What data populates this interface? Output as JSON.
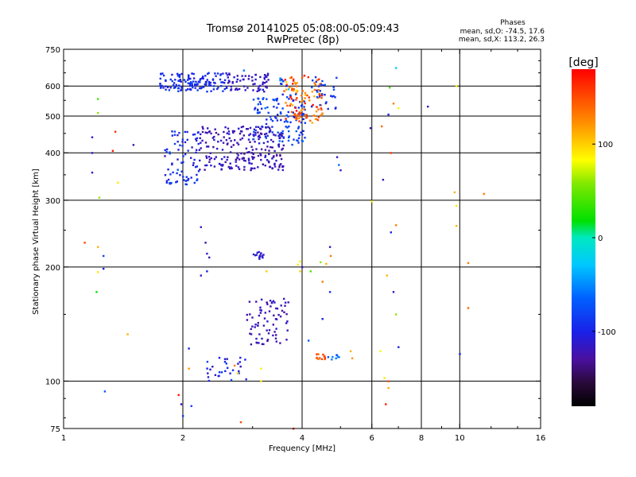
{
  "chart_data": {
    "type": "scatter",
    "title": "Tromsø 20141025 05:08:00-05:09:43",
    "subtitle": "RwPretec (8p)",
    "xlabel": "Frequency [MHz]",
    "ylabel": "Stationary phase Virtual Height [km]",
    "x_scale": "log",
    "y_scale": "log",
    "xlim": [
      1,
      16
    ],
    "ylim": [
      75,
      750
    ],
    "x_ticks": [
      1,
      2,
      4,
      6,
      8,
      10,
      16
    ],
    "y_ticks": [
      75,
      100,
      200,
      300,
      400,
      500,
      600,
      750
    ],
    "grid": true,
    "phase_stats": {
      "title": "Phases",
      "line_o": "mean, sd,O: -74.5, 17.6",
      "line_x": "mean, sd,X: 113.2, 26.3"
    },
    "colorbar": {
      "label": "[deg]",
      "range": [
        -180,
        180
      ],
      "ticks": [
        100,
        0,
        -100
      ]
    },
    "clusters": [
      {
        "f": [
          1.75,
          2.6
        ],
        "h": [
          580,
          650
        ],
        "n": 140,
        "phase": -95,
        "spread": 12
      },
      {
        "f": [
          2.6,
          3.3
        ],
        "h": [
          580,
          650
        ],
        "n": 60,
        "phase": -115,
        "spread": 10
      },
      {
        "f": [
          1.8,
          2.2
        ],
        "h": [
          330,
          460
        ],
        "n": 80,
        "phase": -95,
        "spread": 15
      },
      {
        "f": [
          2.2,
          3.6
        ],
        "h": [
          360,
          470
        ],
        "n": 230,
        "phase": -120,
        "spread": 12
      },
      {
        "f": [
          3.0,
          4.1
        ],
        "h": [
          420,
          560
        ],
        "n": 120,
        "phase": -85,
        "spread": 15
      },
      {
        "f": [
          3.6,
          4.5
        ],
        "h": [
          480,
          640
        ],
        "n": 110,
        "phase": 140,
        "spread": 25
      },
      {
        "f": [
          4.2,
          4.9
        ],
        "h": [
          520,
          640
        ],
        "n": 30,
        "phase": -90,
        "spread": 18
      },
      {
        "f": [
          3.5,
          3.9
        ],
        "h": [
          560,
          640
        ],
        "n": 14,
        "phase": -70,
        "spread": 40
      },
      {
        "f": [
          2.9,
          3.7
        ],
        "h": [
          125,
          165
        ],
        "n": 75,
        "phase": -120,
        "spread": 10
      },
      {
        "f": [
          2.3,
          3.0
        ],
        "h": [
          100,
          118
        ],
        "n": 30,
        "phase": -100,
        "spread": 15
      },
      {
        "f": [
          3.0,
          3.2
        ],
        "h": [
          210,
          220
        ],
        "n": 14,
        "phase": -110,
        "spread": 5
      },
      {
        "f": [
          4.3,
          4.6
        ],
        "h": [
          114,
          118
        ],
        "n": 12,
        "phase": 150,
        "spread": 20
      },
      {
        "f": [
          4.6,
          5.0
        ],
        "h": [
          112,
          118
        ],
        "n": 8,
        "phase": -60,
        "spread": 15
      }
    ],
    "scatter_points": [
      [
        1.18,
        440,
        -110
      ],
      [
        1.18,
        400,
        -110
      ],
      [
        1.18,
        355,
        -115
      ],
      [
        1.22,
        555,
        40
      ],
      [
        1.22,
        510,
        60
      ],
      [
        1.23,
        305,
        60
      ],
      [
        1.13,
        232,
        150
      ],
      [
        1.22,
        226,
        110
      ],
      [
        1.26,
        214,
        -80
      ],
      [
        1.26,
        198,
        -110
      ],
      [
        1.22,
        194,
        90
      ],
      [
        1.21,
        172,
        20
      ],
      [
        1.37,
        334,
        90
      ],
      [
        1.5,
        420,
        -120
      ],
      [
        1.45,
        133,
        110
      ],
      [
        1.27,
        94,
        -70
      ],
      [
        1.33,
        405,
        170
      ],
      [
        1.35,
        455,
        160
      ],
      [
        1.95,
        92,
        170
      ],
      [
        1.98,
        87,
        -120
      ],
      [
        2.0,
        81,
        -90
      ],
      [
        2.1,
        86,
        -80
      ],
      [
        2.07,
        122,
        -100
      ],
      [
        2.07,
        108,
        120
      ],
      [
        2.22,
        255,
        -110
      ],
      [
        2.28,
        232,
        -120
      ],
      [
        2.3,
        217,
        -110
      ],
      [
        2.33,
        212,
        -120
      ],
      [
        2.22,
        190,
        -110
      ],
      [
        2.3,
        195,
        -100
      ],
      [
        2.7,
        110,
        130
      ],
      [
        2.75,
        105,
        100
      ],
      [
        2.8,
        78,
        150
      ],
      [
        3.25,
        195,
        100
      ],
      [
        3.15,
        100,
        90
      ],
      [
        3.8,
        75,
        170
      ],
      [
        3.9,
        203,
        90
      ],
      [
        3.95,
        207,
        80
      ],
      [
        4.0,
        200,
        -120
      ],
      [
        3.95,
        195,
        100
      ],
      [
        4.2,
        195,
        40
      ],
      [
        4.45,
        206,
        60
      ],
      [
        4.6,
        204,
        110
      ],
      [
        4.7,
        226,
        -120
      ],
      [
        4.72,
        214,
        130
      ],
      [
        4.5,
        183,
        130
      ],
      [
        4.5,
        146,
        -100
      ],
      [
        4.7,
        172,
        -90
      ],
      [
        4.9,
        390,
        -110
      ],
      [
        4.95,
        372,
        -60
      ],
      [
        5.0,
        360,
        -110
      ],
      [
        5.95,
        465,
        -120
      ],
      [
        6.0,
        298,
        80
      ],
      [
        6.4,
        340,
        -120
      ],
      [
        6.35,
        470,
        140
      ],
      [
        6.3,
        120,
        80
      ],
      [
        6.45,
        102,
        90
      ],
      [
        6.6,
        100,
        150
      ],
      [
        6.5,
        87,
        170
      ],
      [
        6.7,
        400,
        160
      ],
      [
        6.65,
        595,
        40
      ],
      [
        6.9,
        670,
        -20
      ],
      [
        6.8,
        540,
        130
      ],
      [
        6.6,
        505,
        -100
      ],
      [
        6.9,
        258,
        130
      ],
      [
        6.7,
        247,
        -100
      ],
      [
        6.8,
        172,
        -120
      ],
      [
        6.6,
        96,
        110
      ],
      [
        6.9,
        150,
        60
      ],
      [
        7.0,
        525,
        80
      ],
      [
        8.3,
        530,
        -120
      ],
      [
        9.8,
        600,
        90
      ],
      [
        9.7,
        315,
        110
      ],
      [
        9.8,
        290,
        90
      ],
      [
        9.8,
        257,
        110
      ],
      [
        10.5,
        205,
        130
      ],
      [
        10.5,
        156,
        140
      ],
      [
        10.0,
        118,
        -100
      ],
      [
        11.5,
        312,
        130
      ],
      [
        7.0,
        123,
        -100
      ],
      [
        6.55,
        190,
        110
      ],
      [
        5.3,
        120,
        110
      ],
      [
        5.35,
        115,
        120
      ],
      [
        4.15,
        128,
        -70
      ],
      [
        2.85,
        660,
        -60
      ],
      [
        2.65,
        415,
        -130
      ],
      [
        3.15,
        108,
        90
      ]
    ]
  }
}
